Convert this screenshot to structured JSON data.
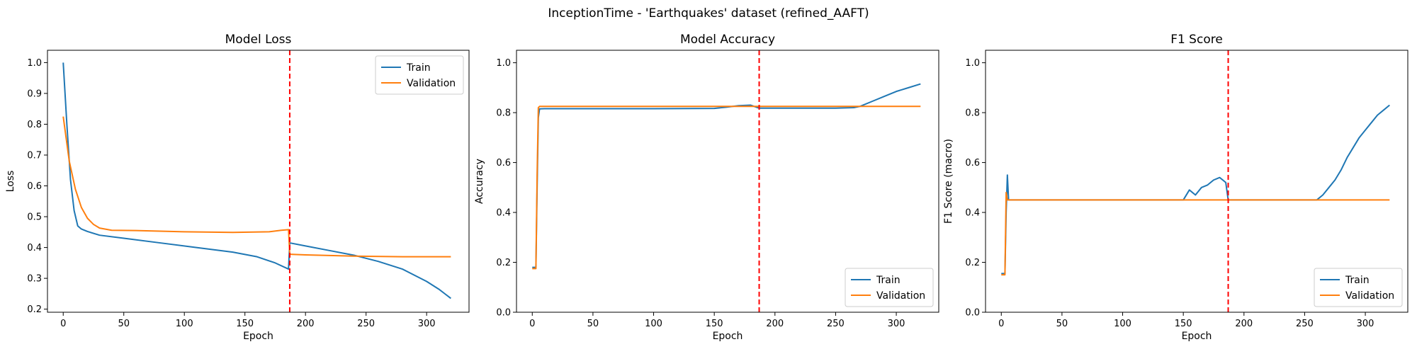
{
  "figure_title": "InceptionTime - 'Earthquakes' dataset (refined_AAFT)",
  "colors": {
    "train": "#1f77b4",
    "validation": "#ff7f0e",
    "marker": "#ff0000"
  },
  "chart_data": [
    {
      "type": "line",
      "title": "Model Loss",
      "xlabel": "Epoch",
      "ylabel": "Loss",
      "xlim": [
        -13,
        335
      ],
      "ylim": [
        0.19,
        1.04
      ],
      "xticks": [
        0,
        50,
        100,
        150,
        200,
        250,
        300
      ],
      "yticks": [
        0.2,
        0.3,
        0.4,
        0.5,
        0.6,
        0.7,
        0.8,
        0.9,
        1.0
      ],
      "ytick_labels": [
        "0.2",
        "0.3",
        "0.4",
        "0.5",
        "0.6",
        "0.7",
        "0.8",
        "0.9",
        "1.0"
      ],
      "vline_epoch": 187,
      "legend": "top-right",
      "grid": false,
      "series": [
        {
          "name": "Train",
          "x": [
            0,
            3,
            6,
            9,
            12,
            15,
            20,
            30,
            50,
            80,
            110,
            140,
            160,
            175,
            186,
            187,
            200,
            220,
            240,
            260,
            280,
            300,
            310,
            315,
            320
          ],
          "values": [
            1.0,
            0.8,
            0.62,
            0.52,
            0.47,
            0.46,
            0.452,
            0.44,
            0.43,
            0.415,
            0.4,
            0.385,
            0.37,
            0.35,
            0.33,
            0.415,
            0.405,
            0.39,
            0.375,
            0.355,
            0.33,
            0.29,
            0.265,
            0.25,
            0.235
          ]
        },
        {
          "name": "Validation",
          "x": [
            0,
            5,
            10,
            15,
            20,
            25,
            30,
            40,
            60,
            100,
            140,
            170,
            180,
            186,
            187,
            200,
            240,
            280,
            320
          ],
          "values": [
            0.825,
            0.68,
            0.59,
            0.53,
            0.495,
            0.475,
            0.463,
            0.456,
            0.455,
            0.451,
            0.449,
            0.451,
            0.456,
            0.458,
            0.378,
            0.376,
            0.372,
            0.37,
            0.37
          ]
        }
      ]
    },
    {
      "type": "line",
      "title": "Model Accuracy",
      "xlabel": "Epoch",
      "ylabel": "Accuracy",
      "xlim": [
        -13,
        335
      ],
      "ylim": [
        0.0,
        1.05
      ],
      "xticks": [
        0,
        50,
        100,
        150,
        200,
        250,
        300
      ],
      "yticks": [
        0.0,
        0.2,
        0.4,
        0.6,
        0.8,
        1.0
      ],
      "ytick_labels": [
        "0.0",
        "0.2",
        "0.4",
        "0.6",
        "0.8",
        "1.0"
      ],
      "vline_epoch": 187,
      "legend": "bottom-right",
      "grid": false,
      "series": [
        {
          "name": "Train",
          "x": [
            0,
            3,
            4,
            5,
            6,
            10,
            50,
            100,
            150,
            160,
            170,
            180,
            187,
            200,
            250,
            265,
            270,
            280,
            290,
            300,
            310,
            320
          ],
          "values": [
            0.18,
            0.18,
            0.5,
            0.78,
            0.815,
            0.816,
            0.816,
            0.816,
            0.817,
            0.822,
            0.828,
            0.83,
            0.818,
            0.818,
            0.818,
            0.82,
            0.825,
            0.845,
            0.865,
            0.885,
            0.9,
            0.915
          ]
        },
        {
          "name": "Validation",
          "x": [
            0,
            3,
            4,
            5,
            6,
            320
          ],
          "values": [
            0.175,
            0.175,
            0.55,
            0.82,
            0.825,
            0.825
          ]
        }
      ]
    },
    {
      "type": "line",
      "title": "F1 Score",
      "xlabel": "Epoch",
      "ylabel": "F1 Score (macro)",
      "xlim": [
        -13,
        335
      ],
      "ylim": [
        0.0,
        1.05
      ],
      "xticks": [
        0,
        50,
        100,
        150,
        200,
        250,
        300
      ],
      "yticks": [
        0.0,
        0.2,
        0.4,
        0.6,
        0.8,
        1.0
      ],
      "ytick_labels": [
        "0.0",
        "0.2",
        "0.4",
        "0.6",
        "0.8",
        "1.0"
      ],
      "vline_epoch": 187,
      "legend": "bottom-right",
      "grid": false,
      "series": [
        {
          "name": "Train",
          "x": [
            0,
            3,
            4,
            5,
            6,
            7,
            10,
            50,
            100,
            150,
            155,
            160,
            165,
            170,
            175,
            180,
            185,
            187,
            200,
            260,
            265,
            270,
            275,
            280,
            285,
            290,
            295,
            300,
            305,
            310,
            315,
            320
          ],
          "values": [
            0.155,
            0.155,
            0.4,
            0.55,
            0.45,
            0.45,
            0.45,
            0.45,
            0.45,
            0.45,
            0.49,
            0.47,
            0.5,
            0.51,
            0.53,
            0.54,
            0.52,
            0.45,
            0.45,
            0.45,
            0.47,
            0.5,
            0.53,
            0.57,
            0.62,
            0.66,
            0.7,
            0.73,
            0.76,
            0.79,
            0.81,
            0.83
          ]
        },
        {
          "name": "Validation",
          "x": [
            0,
            3,
            4,
            5,
            6,
            320
          ],
          "values": [
            0.15,
            0.15,
            0.48,
            0.45,
            0.45,
            0.45
          ]
        }
      ]
    }
  ]
}
